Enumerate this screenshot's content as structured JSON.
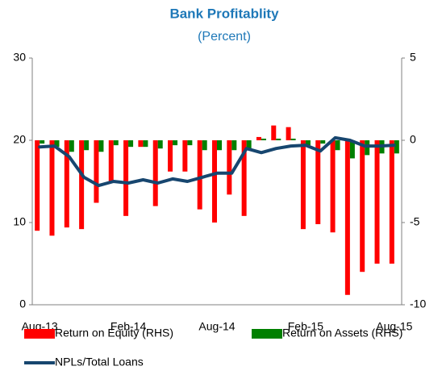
{
  "chart_data": {
    "type": "combo",
    "title": "Bank Profitablity",
    "subtitle": "(Percent)",
    "categories": [
      "Aug-13",
      null,
      null,
      null,
      null,
      null,
      "Feb-14",
      null,
      null,
      null,
      null,
      null,
      "Aug-14",
      null,
      null,
      null,
      null,
      null,
      "Feb-15",
      null,
      null,
      null,
      null,
      null,
      "Aug-15"
    ],
    "ylim": [
      0,
      30
    ],
    "yticks": [
      0,
      10,
      20,
      30
    ],
    "y2lim": [
      -10,
      5
    ],
    "y2ticks": [
      -10,
      -5,
      0,
      5
    ],
    "series": [
      {
        "name": "Return on Equity (RHS)",
        "type": "bar",
        "axis": "y2",
        "color": "#ff0000",
        "values": [
          -5.5,
          -5.8,
          -5.3,
          -5.4,
          -3.8,
          -2.5,
          -4.6,
          -0.4,
          -4.0,
          -1.9,
          -1.9,
          -4.2,
          -5.0,
          -3.3,
          -4.6,
          0.2,
          0.9,
          0.8,
          -5.4,
          -5.1,
          -5.6,
          -9.4,
          -8.0,
          -7.5,
          -7.5
        ]
      },
      {
        "name": "Return on Assets (RHS)",
        "type": "bar",
        "axis": "y2",
        "color": "#008000",
        "values": [
          -0.2,
          -0.4,
          -0.7,
          -0.6,
          -0.7,
          -0.3,
          -0.4,
          -0.4,
          -0.5,
          -0.3,
          -0.3,
          -0.6,
          -0.6,
          -0.6,
          -0.5,
          0.1,
          0.1,
          0.1,
          -0.3,
          -0.2,
          -0.6,
          -1.1,
          -0.9,
          -0.8,
          -0.8
        ]
      },
      {
        "name": "NPLs/Total Loans",
        "type": "line",
        "color": "#17466f",
        "values": [
          19.2,
          19.3,
          18.0,
          15.5,
          14.5,
          15.0,
          14.8,
          15.2,
          14.8,
          15.3,
          15.0,
          15.5,
          16.0,
          16.0,
          19.0,
          18.5,
          19.0,
          19.3,
          19.4,
          18.7,
          20.3,
          20.0,
          19.3,
          19.3,
          19.4
        ]
      }
    ]
  }
}
